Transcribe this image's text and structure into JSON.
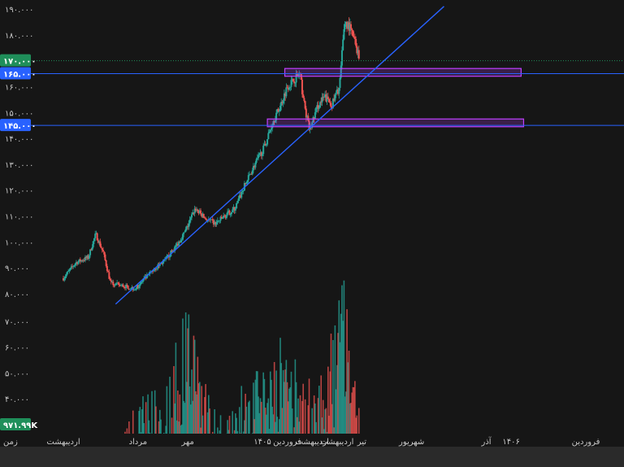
{
  "chart_data": {
    "type": "candlestick",
    "price_axis": {
      "ticks": [
        {
          "value": 190000,
          "label": "۱۹۰.۰۰۰"
        },
        {
          "value": 180000,
          "label": "۱۸۰.۰۰۰"
        },
        {
          "value": 160000,
          "label": "۱۶۰.۰۰۰"
        },
        {
          "value": 150000,
          "label": "۱۵۰.۰۰۰"
        },
        {
          "value": 140000,
          "label": "۱۴۰.۰۰۰"
        },
        {
          "value": 130000,
          "label": "۱۳۰.۰۰۰"
        },
        {
          "value": 120000,
          "label": "۱۲۰.۰۰۰"
        },
        {
          "value": 110000,
          "label": "۱۱۰.۰۰۰"
        },
        {
          "value": 100000,
          "label": "۱۰۰.۰۰۰"
        },
        {
          "value": 90000,
          "label": "۹۰.۰۰۰"
        },
        {
          "value": 80000,
          "label": "۸۰.۰۰۰"
        }
      ],
      "current_price": {
        "value": 170000,
        "label": "۱۷۰.۰۰۰",
        "color": "#1f8f5a"
      },
      "levels": [
        {
          "value": 165000,
          "label": "۱۶۵.۰۰۰",
          "color": "#2962ff"
        },
        {
          "value": 145000,
          "label": "۱۴۵.۰۰۰",
          "color": "#2962ff"
        }
      ]
    },
    "volume_axis": {
      "ticks": [
        {
          "value": 70000,
          "label": "۷۰.۰۰۰"
        },
        {
          "value": 60000,
          "label": "۶۰.۰۰۰"
        },
        {
          "value": 50000,
          "label": "۵۰.۰۰۰"
        },
        {
          "value": 40000,
          "label": "۴۰.۰۰۰"
        }
      ],
      "current_volume_label": "۹۷۱.۹۹K",
      "current_volume_color": "#1f8f5a"
    },
    "time_axis": {
      "ticks": [
        {
          "label": "اردیبهشت",
          "t": 0
        },
        {
          "label": "مرداد",
          "t": 3
        },
        {
          "label": "مهر",
          "t": 5
        },
        {
          "label": "۱۴۰۵",
          "t": 8
        },
        {
          "label": "فروردین",
          "t": 9
        },
        {
          "label": "اردیبهشت",
          "t": 10
        },
        {
          "label": "اردیبهشت",
          "t": 11
        },
        {
          "label": "تیر",
          "t": 12
        },
        {
          "label": "شهریور",
          "t": 14
        },
        {
          "label": "آذر",
          "t": 17
        },
        {
          "label": "۱۴۰۶",
          "t": 18
        },
        {
          "label": "فروردین",
          "t": 21
        }
      ],
      "corner_label": "زمن"
    },
    "price_path": [
      [
        0.0,
        86000
      ],
      [
        0.5,
        92000
      ],
      [
        1.0,
        94000
      ],
      [
        1.3,
        103000
      ],
      [
        1.6,
        96000
      ],
      [
        1.9,
        84000
      ],
      [
        2.4,
        83000
      ],
      [
        2.9,
        82000
      ],
      [
        3.3,
        86000
      ],
      [
        3.7,
        90000
      ],
      [
        4.1,
        93000
      ],
      [
        4.5,
        98000
      ],
      [
        4.9,
        104000
      ],
      [
        5.3,
        113000
      ],
      [
        5.7,
        109000
      ],
      [
        6.1,
        107000
      ],
      [
        6.5,
        110000
      ],
      [
        6.9,
        113000
      ],
      [
        7.3,
        122000
      ],
      [
        7.7,
        130000
      ],
      [
        8.1,
        137000
      ],
      [
        8.4,
        146000
      ],
      [
        8.7,
        152000
      ],
      [
        9.0,
        160000
      ],
      [
        9.3,
        163000
      ],
      [
        9.5,
        165000
      ],
      [
        9.7,
        152000
      ],
      [
        9.9,
        143000
      ],
      [
        10.2,
        152000
      ],
      [
        10.5,
        156000
      ],
      [
        10.8,
        153000
      ],
      [
        11.1,
        160000
      ],
      [
        11.3,
        185000
      ],
      [
        11.5,
        183000
      ],
      [
        11.7,
        178000
      ],
      [
        11.9,
        171000
      ]
    ],
    "volume_path": [
      [
        2.0,
        14000
      ],
      [
        2.5,
        20000
      ],
      [
        3.0,
        28000
      ],
      [
        3.5,
        34000
      ],
      [
        4.0,
        28000
      ],
      [
        4.5,
        43000
      ],
      [
        5.0,
        58000
      ],
      [
        5.5,
        42000
      ],
      [
        6.0,
        26000
      ],
      [
        6.5,
        23000
      ],
      [
        7.0,
        30000
      ],
      [
        7.5,
        34000
      ],
      [
        8.0,
        37000
      ],
      [
        8.5,
        48000
      ],
      [
        9.0,
        44000
      ],
      [
        9.5,
        36000
      ],
      [
        10.0,
        33000
      ],
      [
        10.5,
        40000
      ],
      [
        11.0,
        52000
      ],
      [
        11.3,
        72000
      ],
      [
        11.6,
        46000
      ],
      [
        11.9,
        33000
      ]
    ],
    "trendline": {
      "from": [
        2.1,
        76000
      ],
      "to": [
        15.3,
        191000
      ],
      "color": "#2962ff"
    },
    "zones": [
      {
        "from_t": 8.9,
        "to_t": 18.4,
        "low": 164000,
        "high": 167000,
        "color": "#c040ff"
      },
      {
        "from_t": 8.2,
        "to_t": 18.5,
        "low": 144500,
        "high": 147500,
        "color": "#c040ff"
      }
    ],
    "colors": {
      "up": "#26a69a",
      "down": "#ef5350",
      "background": "#161616",
      "level": "#2962ff"
    },
    "grid": false
  }
}
